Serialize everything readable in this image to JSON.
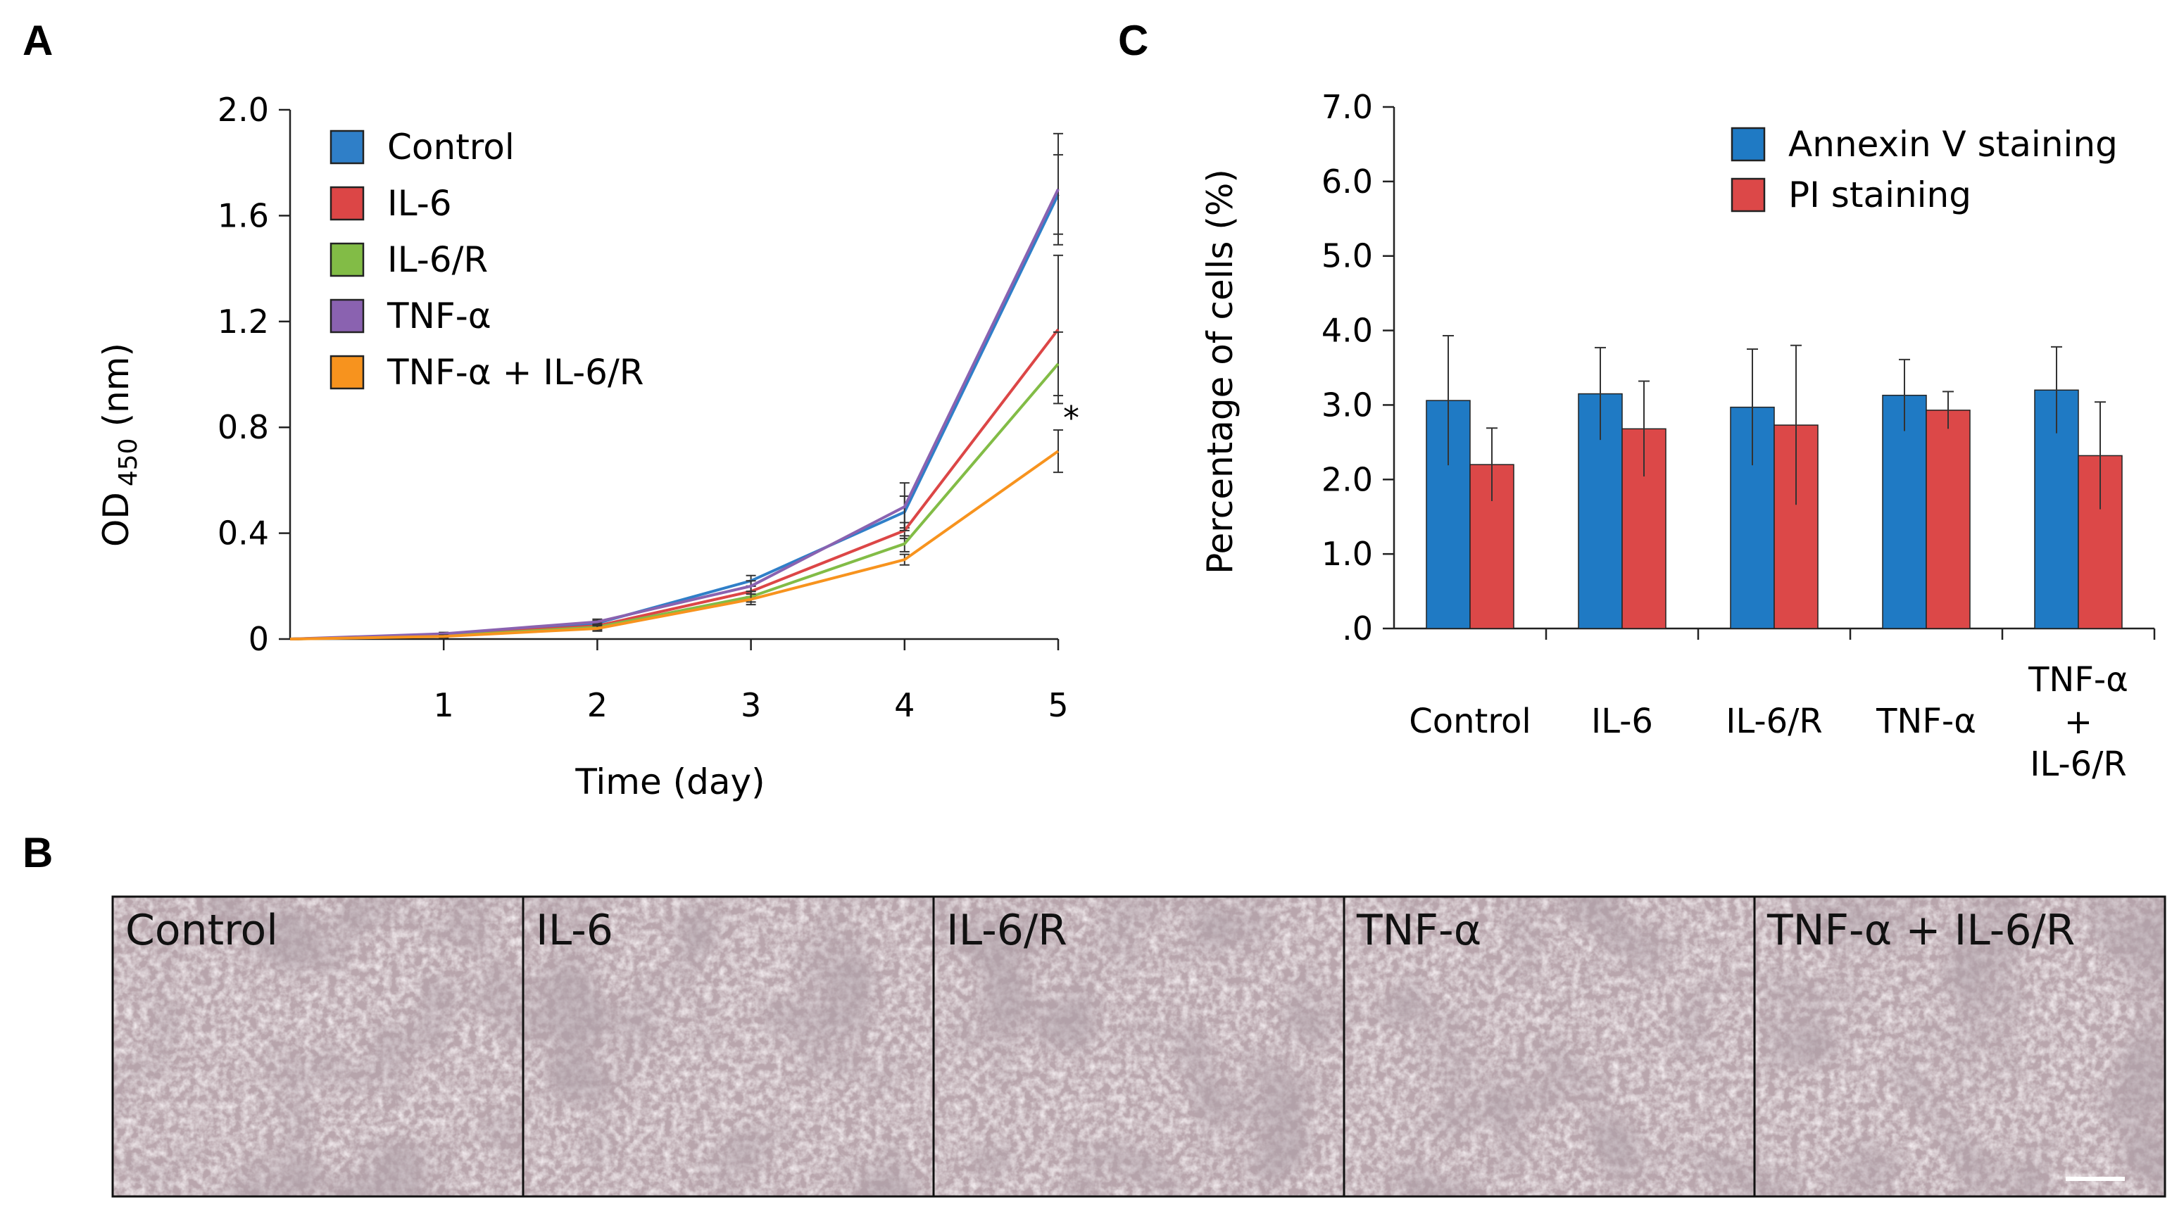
{
  "panels": {
    "A": "A",
    "B": "B",
    "C": "C"
  },
  "chart_data": [
    {
      "type": "line",
      "panel": "A",
      "title": "",
      "xlabel": "Time (day)",
      "ylabel_main": "OD",
      "ylabel_sub": "450",
      "ylabel_unit": "(nm)",
      "x": [
        0,
        1,
        2,
        3,
        4,
        5
      ],
      "xticks": [
        "1",
        "2",
        "3",
        "4",
        "5"
      ],
      "yticks": [
        "0",
        "0.4",
        "0.8",
        "1.2",
        "1.6",
        "2.0"
      ],
      "ytick_values": [
        0,
        0.4,
        0.8,
        1.2,
        1.6,
        2.0
      ],
      "xlim": [
        0,
        5
      ],
      "ylim": [
        0,
        2.0
      ],
      "annotation": "*",
      "series": [
        {
          "name": "Control",
          "color": "#2f7fc8",
          "values": [
            0,
            0.015,
            0.06,
            0.22,
            0.48,
            1.68
          ],
          "errors": [
            0,
            0.005,
            0.01,
            0.02,
            0.06,
            0.15
          ]
        },
        {
          "name": "IL-6",
          "color": "#dc4646",
          "values": [
            0,
            0.015,
            0.05,
            0.18,
            0.41,
            1.17
          ],
          "errors": [
            0,
            0.005,
            0.01,
            0.02,
            0.03,
            0.28
          ]
        },
        {
          "name": "IL-6/R",
          "color": "#82bc46",
          "values": [
            0,
            0.012,
            0.045,
            0.16,
            0.36,
            1.04
          ],
          "errors": [
            0,
            0.005,
            0.01,
            0.02,
            0.03,
            0.12
          ]
        },
        {
          "name": "TNF-α",
          "color": "#8a62b0",
          "values": [
            0,
            0.02,
            0.065,
            0.2,
            0.5,
            1.7
          ],
          "errors": [
            0,
            0.005,
            0.01,
            0.02,
            0.09,
            0.21
          ]
        },
        {
          "name": "TNF-α + IL-6/R",
          "color": "#f7931e",
          "values": [
            0,
            0.01,
            0.04,
            0.15,
            0.3,
            0.71
          ],
          "errors": [
            0,
            0.005,
            0.01,
            0.02,
            0.02,
            0.08
          ]
        }
      ],
      "legend_position": "top-left"
    },
    {
      "type": "bar",
      "panel": "C",
      "title": "",
      "xlabel": "",
      "ylabel": "Percentage of cells (%)",
      "categories": [
        "Control",
        "IL-6",
        "IL-6/R",
        "TNF-α",
        "TNF-α + IL-6/R"
      ],
      "category_lines": [
        [
          "Control"
        ],
        [
          "IL-6"
        ],
        [
          "IL-6/R"
        ],
        [
          "TNF-α"
        ],
        [
          "TNF-α",
          "+",
          "IL-6/R"
        ]
      ],
      "yticks": [
        ".0",
        "1.0",
        "2.0",
        "3.0",
        "4.0",
        "5.0",
        "6.0",
        "7.0"
      ],
      "ytick_values": [
        0,
        1,
        2,
        3,
        4,
        5,
        6,
        7
      ],
      "ylim": [
        0,
        7
      ],
      "series": [
        {
          "name": "Annexin V staining",
          "color": "#1f7ac4",
          "values": [
            3.06,
            3.15,
            2.97,
            3.13,
            3.2
          ],
          "errors": [
            0.87,
            0.62,
            0.78,
            0.48,
            0.58
          ]
        },
        {
          "name": "PI staining",
          "color": "#dc4848",
          "values": [
            2.2,
            2.68,
            2.73,
            2.93,
            2.32
          ],
          "errors": [
            0.49,
            0.64,
            1.07,
            0.25,
            0.72
          ]
        }
      ],
      "legend_position": "top-right"
    }
  ],
  "micrographs": {
    "labels": [
      "Control",
      "IL-6",
      "IL-6/R",
      "TNF-α",
      "TNF-α + IL-6/R"
    ],
    "background": "#8a7680"
  }
}
